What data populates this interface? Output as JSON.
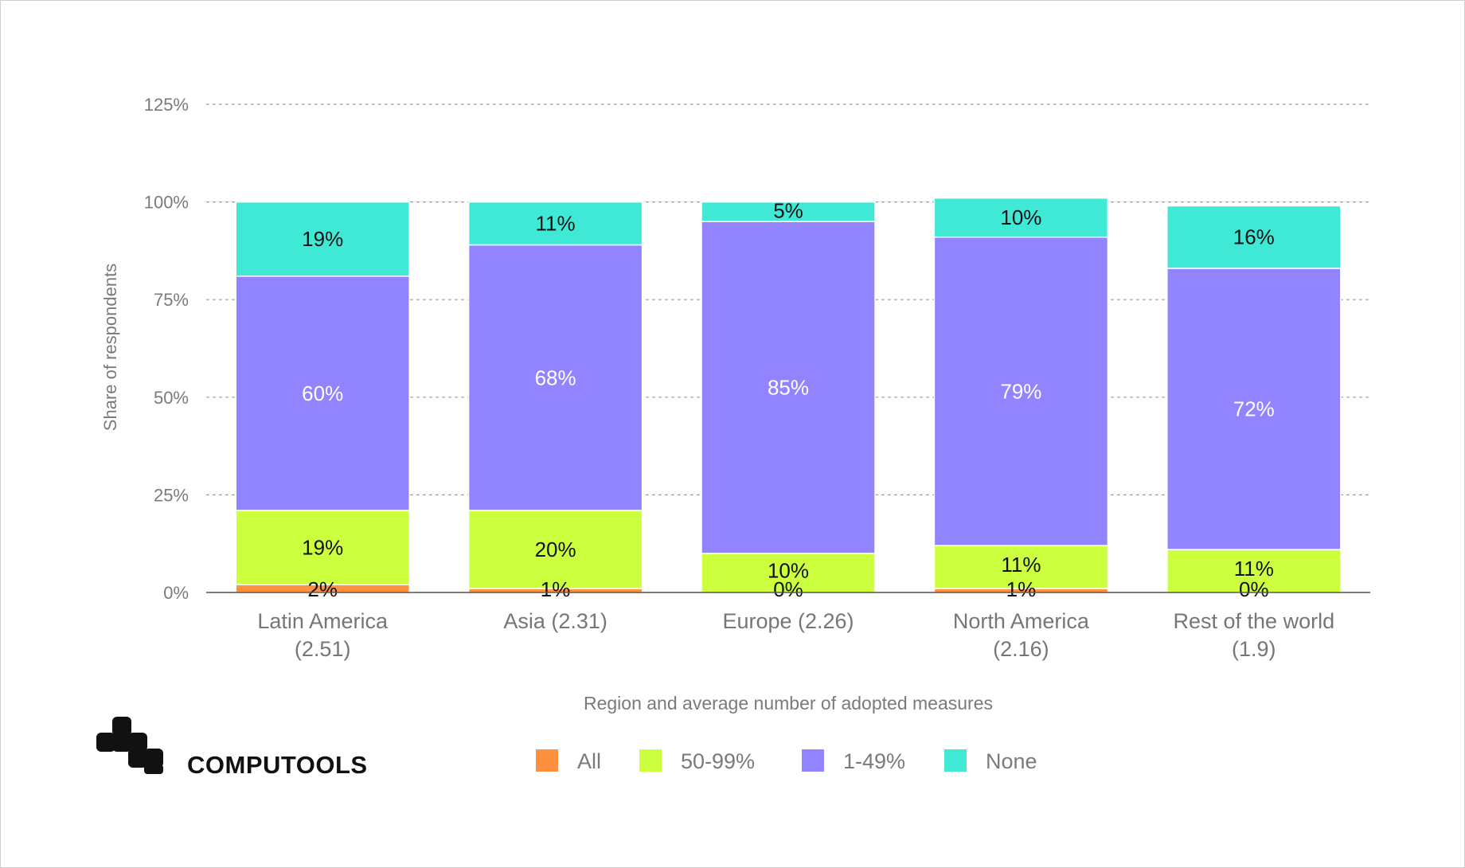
{
  "brand": {
    "name": "COMPUTOOLS"
  },
  "chart_data": {
    "type": "bar",
    "stacked": true,
    "xlabel": "Region and average number of adopted measures",
    "ylabel": "Share of respondents",
    "ylim": [
      0,
      125
    ],
    "yticks": [
      "0%",
      "25%",
      "50%",
      "75%",
      "100%",
      "125%"
    ],
    "ytick_values": [
      0,
      25,
      50,
      75,
      100,
      125
    ],
    "grid": true,
    "legend_position": "bottom",
    "categories": [
      [
        "Latin America",
        "(2.51)"
      ],
      [
        "Asia (2.31)"
      ],
      [
        "Europe (2.26)"
      ],
      [
        "North America",
        "(2.16)"
      ],
      [
        "Rest of the world",
        "(1.9)"
      ]
    ],
    "series": [
      {
        "name": "All",
        "color": "#ff9040",
        "text_color": "#111111",
        "values": [
          2,
          1,
          0,
          1,
          0
        ],
        "labels": [
          "2%",
          "1%",
          "0%",
          "1%",
          "0%"
        ]
      },
      {
        "name": "50-99%",
        "color": "#ccff3d",
        "text_color": "#111111",
        "values": [
          19,
          20,
          10,
          11,
          11
        ],
        "labels": [
          "19%",
          "20%",
          "10%",
          "11%",
          "11%"
        ]
      },
      {
        "name": "1-49%",
        "color": "#9283ff",
        "text_color": "#ffffff",
        "values": [
          60,
          68,
          85,
          79,
          72
        ],
        "labels": [
          "60%",
          "68%",
          "85%",
          "79%",
          "72%"
        ]
      },
      {
        "name": "None",
        "color": "#40e9d6",
        "text_color": "#111111",
        "values": [
          19,
          11,
          5,
          10,
          16
        ],
        "labels": [
          "19%",
          "11%",
          "5%",
          "10%",
          "16%"
        ]
      }
    ]
  }
}
